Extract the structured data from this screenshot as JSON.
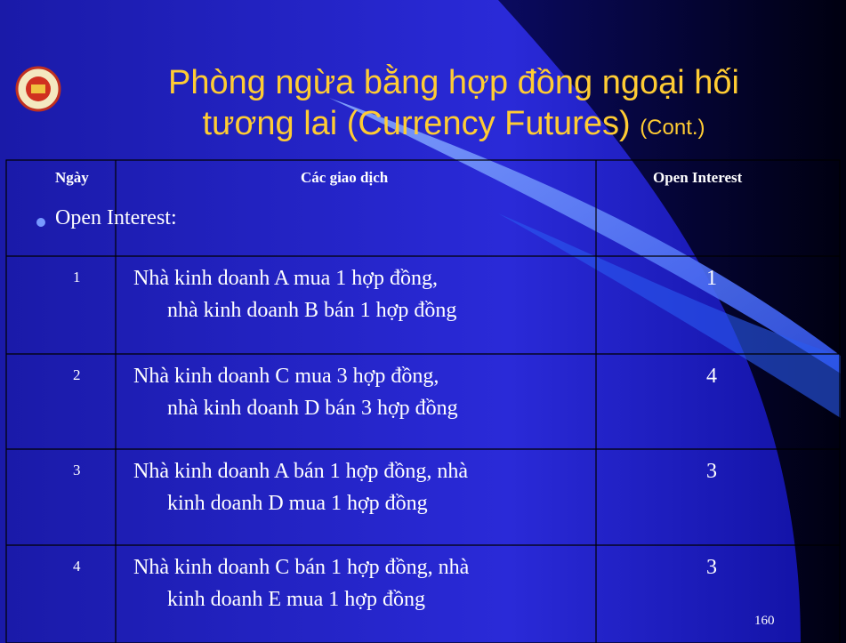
{
  "slide": {
    "title_lines": [
      "Phòng ngừa bằng hợp đồng ngoại hối",
      "tương lai (Currency Futures)"
    ],
    "title_suffix": "(Cont.)",
    "table": {
      "header": [
        "Ngày",
        "Các giao dịch",
        "Open Interest"
      ],
      "bullet": "Open Interest:",
      "rows": [
        {
          "day": "1",
          "lines": [
            "Nhà kinh doanh A mua 1 hợp đồng,",
            "nhà kinh doanh B bán 1 hợp đồng"
          ],
          "open_interest": "1"
        },
        {
          "day": "2",
          "lines": [
            "Nhà kinh doanh C mua 3 hợp đồng,",
            "nhà kinh doanh D bán 3 hợp đồng"
          ],
          "open_interest": "4"
        },
        {
          "day": "3",
          "lines": [
            "Nhà kinh doanh A bán 1 hợp đồng, nhà",
            "kinh doanh D mua 1 hợp đồng"
          ],
          "open_interest": "3"
        },
        {
          "day": "4",
          "lines": [
            "Nhà kinh doanh C bán 1 hợp đồng, nhà",
            "kinh doanh E mua 1 hợp đồng"
          ],
          "open_interest": "3"
        }
      ]
    },
    "page_number": "160"
  }
}
